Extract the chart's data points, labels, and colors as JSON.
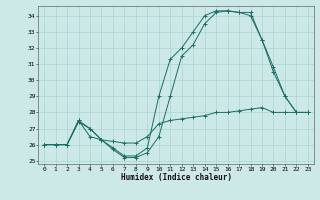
{
  "xlabel": "Humidex (Indice chaleur)",
  "bg_color": "#cce9e8",
  "grid_color": "#aad4d3",
  "line_color": "#1a6e64",
  "xlim": [
    -0.5,
    23.5
  ],
  "ylim": [
    24.8,
    34.6
  ],
  "yticks": [
    25,
    26,
    27,
    28,
    29,
    30,
    31,
    32,
    33,
    34
  ],
  "xticks": [
    0,
    1,
    2,
    3,
    4,
    5,
    6,
    7,
    8,
    9,
    10,
    11,
    12,
    13,
    14,
    15,
    16,
    17,
    18,
    19,
    20,
    21,
    22,
    23
  ],
  "series": [
    {
      "x": [
        0,
        1,
        2,
        3,
        4,
        5,
        6,
        7,
        8,
        9,
        10,
        11,
        12,
        13,
        14,
        15,
        16,
        17,
        18,
        19,
        20,
        21,
        22,
        23
      ],
      "y": [
        26,
        26,
        26,
        27.5,
        27.0,
        26.3,
        25.8,
        25.3,
        25.3,
        25.8,
        29.0,
        31.3,
        32.0,
        33.0,
        34.0,
        34.3,
        34.3,
        34.2,
        34.0,
        32.5,
        30.8,
        29.0,
        28.0,
        28.0
      ]
    },
    {
      "x": [
        0,
        1,
        2,
        3,
        4,
        5,
        6,
        7,
        8,
        9,
        10,
        11,
        12,
        13,
        14,
        15,
        16,
        17,
        18,
        19,
        20,
        21,
        22,
        23
      ],
      "y": [
        26,
        26,
        26,
        27.5,
        26.5,
        26.3,
        26.2,
        26.1,
        26.1,
        26.5,
        27.3,
        27.5,
        27.6,
        27.7,
        27.8,
        28.0,
        28.0,
        28.1,
        28.2,
        28.3,
        28.0,
        28.0,
        28.0,
        28.0
      ]
    },
    {
      "x": [
        0,
        1,
        2,
        3,
        4,
        5,
        6,
        7,
        8,
        9,
        10,
        11,
        12,
        13,
        14,
        15,
        16,
        17,
        18,
        19,
        20,
        21,
        22,
        23
      ],
      "y": [
        26,
        26,
        26,
        27.4,
        27,
        26.3,
        25.7,
        25.2,
        25.2,
        25.5,
        26.5,
        29,
        31.5,
        32.2,
        33.5,
        34.2,
        34.3,
        34.2,
        34.2,
        32.5,
        30.5,
        29.0,
        28.0,
        28.0
      ]
    }
  ]
}
